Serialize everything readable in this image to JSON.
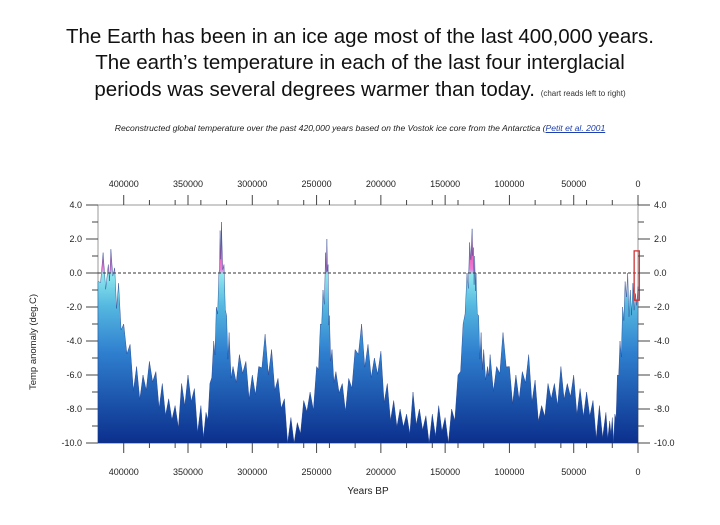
{
  "header": {
    "line1": "The Earth has been in an ice age most of the last 400,000 years.",
    "line2": "The earth’s temperature in each of the last four interglacial",
    "line3": "periods was several degrees warmer than today.",
    "note": "(chart reads left to right)",
    "subtitle_text": "Reconstructed global temperature over the past 420,000 years based on the Vostok ice core from the Antarctica (",
    "subtitle_link": "Petit et al. 2001"
  },
  "colors": {
    "deep_blue": "#0b2f8c",
    "mid_blue": "#2f7fcf",
    "light_cyan": "#7fe6ec",
    "warm_pink": "#f07ad8",
    "peak_red": "#b5122b",
    "highlight_box": "#d03030"
  },
  "chart_data": {
    "type": "area",
    "xlabel": "Years BP",
    "ylabel": "Temp anomaly (deg.C)",
    "xlim": [
      420000,
      0
    ],
    "ylim": [
      -10,
      4
    ],
    "x_ticks": [
      400000,
      350000,
      300000,
      250000,
      200000,
      150000,
      100000,
      50000,
      0
    ],
    "x_tick_labels": [
      "400000",
      "350000",
      "300000",
      "250000",
      "200000",
      "150000",
      "100000",
      "50000",
      "0"
    ],
    "y_ticks": [
      4,
      2,
      0,
      -2,
      -4,
      -6,
      -8,
      -10
    ],
    "y_tick_labels_left": [
      "4.0",
      "2.0",
      "0.0",
      "-2.0",
      "-4.0",
      "-6.0",
      "-8.0",
      "-10.0"
    ],
    "y_tick_labels_right": [
      "4.0",
      "2.0",
      "0.0",
      "-2.0",
      "-4.0",
      "-6.0",
      "-8.0",
      "-10.0"
    ],
    "reference_line": 0,
    "series": [
      {
        "x": [
          420000,
          416000,
          412000,
          410000,
          407000,
          404000,
          400000,
          395000,
          390000,
          385000,
          380000,
          375000,
          370000,
          365000,
          360000,
          355000,
          350000,
          345000,
          340000,
          336000,
          333000,
          330000,
          328000,
          326000,
          325000,
          324000,
          322000,
          320000,
          318000,
          315000,
          310000,
          305000,
          300000,
          295000,
          290000,
          285000,
          280000,
          275000,
          270000,
          265000,
          260000,
          255000,
          250000,
          247000,
          245000,
          243000,
          242000,
          241000,
          240000,
          238000,
          235000,
          230000,
          225000,
          220000,
          215000,
          210000,
          205000,
          200000,
          195000,
          190000,
          185000,
          180000,
          175000,
          170000,
          165000,
          160000,
          155000,
          150000,
          145000,
          140000,
          136000,
          133000,
          131000,
          129000,
          128000,
          127000,
          126000,
          124000,
          122000,
          120000,
          117000,
          115000,
          110000,
          105000,
          100000,
          95000,
          90000,
          85000,
          80000,
          75000,
          70000,
          65000,
          60000,
          55000,
          50000,
          45000,
          40000,
          35000,
          30000,
          25000,
          22000,
          20000,
          18000,
          16000,
          14000,
          12000,
          10000,
          8000,
          6000,
          4000,
          2000,
          0
        ],
        "values": [
          -0.5,
          1.2,
          0.5,
          1.4,
          0.3,
          -0.6,
          -3.0,
          -4.2,
          -5.5,
          -6.0,
          -5.2,
          -5.8,
          -6.5,
          -7.4,
          -7.8,
          -6.5,
          -6.0,
          -6.8,
          -7.8,
          -8.2,
          -6.5,
          -4.0,
          -2.0,
          0.0,
          2.5,
          3.0,
          0.5,
          -2.5,
          -3.5,
          -5.5,
          -4.8,
          -5.2,
          -6.0,
          -5.5,
          -3.6,
          -4.5,
          -6.2,
          -7.4,
          -8.5,
          -8.8,
          -7.5,
          -7.0,
          -5.5,
          -3.0,
          -1.0,
          1.2,
          2.0,
          0.5,
          -2.5,
          -4.5,
          -5.8,
          -6.5,
          -6.2,
          -4.5,
          -3.0,
          -4.2,
          -5.0,
          -4.6,
          -6.5,
          -7.5,
          -8.0,
          -8.3,
          -7.0,
          -8.0,
          -8.4,
          -8.3,
          -7.8,
          -8.5,
          -8.0,
          -6.0,
          -3.0,
          0.0,
          1.8,
          2.6,
          1.5,
          1.0,
          0.0,
          -2.5,
          -3.5,
          -4.5,
          -5.5,
          -4.8,
          -5.5,
          -3.5,
          -5.5,
          -6.0,
          -5.8,
          -4.8,
          -6.3,
          -7.8,
          -6.5,
          -6.5,
          -5.5,
          -6.5,
          -6.0,
          -6.8,
          -7.0,
          -7.5,
          -7.8,
          -8.2,
          -8.7,
          -8.5,
          -8.3,
          -6.0,
          -4.0,
          -2.0,
          -0.5,
          0.0,
          -1.0,
          -0.6,
          -1.2,
          -0.8
        ]
      }
    ],
    "highlight_box": {
      "x_range": [
        3000,
        -1000
      ],
      "y_range": [
        1.3,
        -1.6
      ]
    }
  }
}
